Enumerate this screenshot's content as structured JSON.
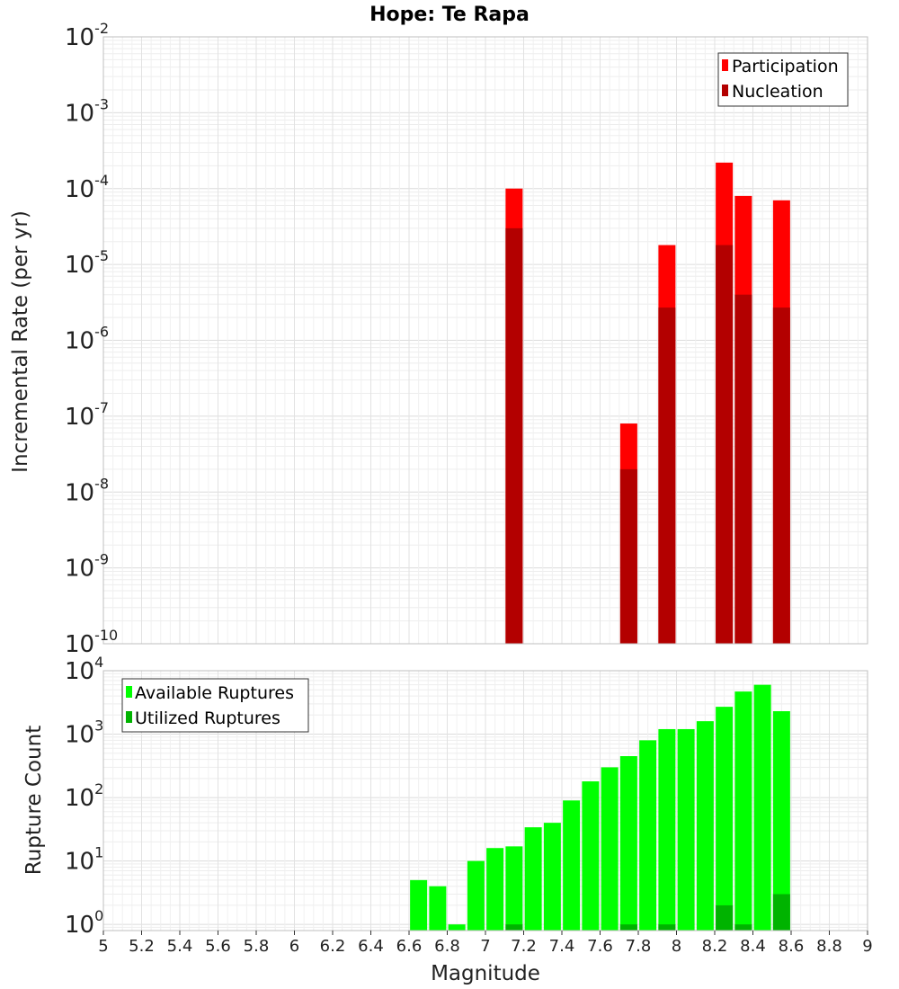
{
  "chart_data": [
    {
      "type": "bar",
      "title": "Hope: Te Rapa",
      "xlabel": "",
      "ylabel": "Incremental Rate (per yr)",
      "yscale": "log",
      "ylim": [
        1e-10,
        0.01
      ],
      "xlim": [
        5,
        9
      ],
      "grid": true,
      "legend": "top-right",
      "x": [
        7.15,
        7.75,
        7.95,
        8.25,
        8.35,
        8.55
      ],
      "series": [
        {
          "name": "Participation",
          "color": "#ff0000",
          "values": [
            0.0001,
            8e-08,
            1.8e-05,
            0.00022,
            8e-05,
            7e-05
          ]
        },
        {
          "name": "Nucleation",
          "color": "#b30000",
          "values": [
            3e-05,
            2e-08,
            2.7e-06,
            1.8e-05,
            4e-06,
            2.7e-06
          ]
        }
      ],
      "yticks": [
        {
          "base": "10",
          "exp": "-2"
        },
        {
          "base": "10",
          "exp": "-3"
        },
        {
          "base": "10",
          "exp": "-4"
        },
        {
          "base": "10",
          "exp": "-5"
        },
        {
          "base": "10",
          "exp": "-6"
        },
        {
          "base": "10",
          "exp": "-7"
        },
        {
          "base": "10",
          "exp": "-8"
        },
        {
          "base": "10",
          "exp": "-9"
        },
        {
          "base": "10",
          "exp": "-10"
        }
      ]
    },
    {
      "type": "bar",
      "title": "",
      "xlabel": "Magnitude",
      "ylabel": "Rupture Count",
      "yscale": "log",
      "ylim": [
        0.8,
        10000
      ],
      "xlim": [
        5,
        9
      ],
      "grid": true,
      "legend": "top-left",
      "x": [
        6.65,
        6.75,
        6.85,
        6.95,
        7.05,
        7.15,
        7.25,
        7.35,
        7.45,
        7.55,
        7.65,
        7.75,
        7.85,
        7.95,
        8.05,
        8.15,
        8.25,
        8.35,
        8.45,
        8.55
      ],
      "series": [
        {
          "name": "Available Ruptures",
          "color": "#00ff00",
          "values": [
            5,
            4,
            1,
            10,
            16,
            17,
            34,
            40,
            90,
            180,
            300,
            450,
            800,
            1200,
            1200,
            1600,
            2700,
            4700,
            6000,
            2300
          ]
        },
        {
          "name": "Utilized Ruptures",
          "color": "#00b300",
          "values": [
            0,
            0,
            0,
            0,
            0,
            1,
            0,
            0,
            0,
            0,
            0,
            1,
            0,
            1,
            0,
            0,
            2,
            1,
            0,
            3
          ]
        }
      ],
      "yticks": [
        {
          "base": "10",
          "exp": "4"
        },
        {
          "base": "10",
          "exp": "3"
        },
        {
          "base": "10",
          "exp": "2"
        },
        {
          "base": "10",
          "exp": "1"
        },
        {
          "base": "10",
          "exp": "0"
        }
      ],
      "xticks": [
        "5",
        "5.2",
        "5.4",
        "5.6",
        "5.8",
        "6",
        "6.2",
        "6.4",
        "6.6",
        "6.8",
        "7",
        "7.2",
        "7.4",
        "7.6",
        "7.8",
        "8",
        "8.2",
        "8.4",
        "8.6",
        "8.8",
        "9"
      ]
    }
  ]
}
